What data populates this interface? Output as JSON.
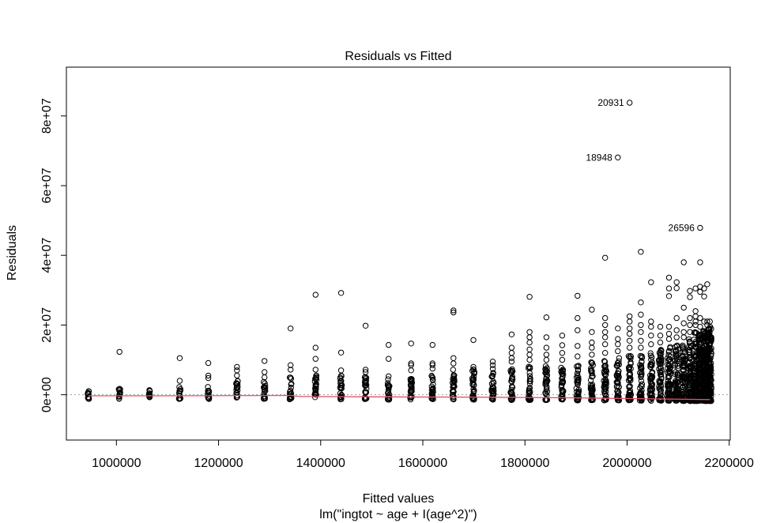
{
  "chart_data": {
    "type": "scatter",
    "title": "Residuals vs Fitted",
    "xlabel": "Fitted values",
    "subtitle": "lm(\"ingtot ~ age + I(age^2)\")",
    "ylabel": "Residuals",
    "xlim": [
      902000,
      2202000
    ],
    "ylim": [
      -13000000,
      94000000
    ],
    "x_ticks": [
      {
        "value": 1000000,
        "label": "1000000"
      },
      {
        "value": 1200000,
        "label": "1200000"
      },
      {
        "value": 1400000,
        "label": "1400000"
      },
      {
        "value": 1600000,
        "label": "1600000"
      },
      {
        "value": 1800000,
        "label": "1800000"
      },
      {
        "value": 2000000,
        "label": "2000000"
      },
      {
        "value": 2200000,
        "label": "2200000"
      }
    ],
    "y_ticks": [
      {
        "value": 0,
        "label": "0e+00"
      },
      {
        "value": 20000000,
        "label": "2e+07"
      },
      {
        "value": 40000000,
        "label": "4e+07"
      },
      {
        "value": 60000000,
        "label": "6e+07"
      },
      {
        "value": 80000000,
        "label": "8e+07"
      }
    ],
    "reference_line": {
      "y": 0,
      "color": "#999999",
      "style": "dotted"
    },
    "smooth_line": {
      "color": "#df536b",
      "points": [
        [
          945000,
          -300000
        ],
        [
          1100000,
          -300000
        ],
        [
          1340000,
          -200000
        ],
        [
          1360000,
          -500000
        ],
        [
          1500000,
          -600000
        ],
        [
          1700000,
          -700000
        ],
        [
          1900000,
          -900000
        ],
        [
          2050000,
          -1200000
        ],
        [
          2162000,
          -1400000
        ]
      ]
    },
    "clusters": [
      {
        "x": 945000,
        "low": -1200000,
        "high": 1300000,
        "density": 0.6
      },
      {
        "x": 1006000,
        "low": -1200000,
        "high": 2000000,
        "density": 0.6,
        "extra": [
          12300000
        ]
      },
      {
        "x": 1065000,
        "low": -1200000,
        "high": 1600000,
        "density": 0.6
      },
      {
        "x": 1124000,
        "low": -1200000,
        "high": 2200000,
        "density": 0.6,
        "extra": [
          4000000,
          10500000
        ]
      },
      {
        "x": 1180000,
        "low": -1200000,
        "high": 3000000,
        "density": 0.6,
        "extra": [
          4800000,
          5500000,
          9100000
        ]
      },
      {
        "x": 1236000,
        "low": -1200000,
        "high": 4000000,
        "density": 0.65,
        "extra": [
          5500000,
          7000000,
          8000000
        ]
      },
      {
        "x": 1290000,
        "low": -1200000,
        "high": 4000000,
        "density": 0.65,
        "extra": [
          5000000,
          6500000,
          9700000
        ]
      },
      {
        "x": 1341000,
        "low": -1300000,
        "high": 5000000,
        "density": 0.7,
        "extra": [
          7200000,
          8500000,
          19000000
        ]
      },
      {
        "x": 1390000,
        "low": -1300000,
        "high": 6000000,
        "density": 0.7,
        "extra": [
          7200000,
          10300000,
          13500000,
          28700000
        ]
      },
      {
        "x": 1440000,
        "low": -1300000,
        "high": 6000000,
        "density": 0.7,
        "extra": [
          7000000,
          12100000,
          29200000
        ]
      },
      {
        "x": 1488000,
        "low": -1300000,
        "high": 5500000,
        "density": 0.7,
        "extra": [
          6500000,
          7200000,
          19800000
        ]
      },
      {
        "x": 1533000,
        "low": -1400000,
        "high": 4500000,
        "density": 0.7,
        "extra": [
          5300000,
          10300000,
          14300000
        ]
      },
      {
        "x": 1577000,
        "low": -1400000,
        "high": 6000000,
        "density": 0.75,
        "extra": [
          7000000,
          8500000,
          9000000,
          14700000
        ]
      },
      {
        "x": 1619000,
        "low": -1400000,
        "high": 5500000,
        "density": 0.75,
        "extra": [
          7500000,
          8500000,
          9000000,
          14300000
        ]
      },
      {
        "x": 1660000,
        "low": -1400000,
        "high": 7500000,
        "density": 0.75,
        "extra": [
          9000000,
          10500000,
          23600000,
          24200000
        ]
      },
      {
        "x": 1699000,
        "low": -1400000,
        "high": 7500000,
        "density": 0.8,
        "extra": [
          8000000,
          15700000
        ]
      },
      {
        "x": 1737000,
        "low": -1500000,
        "high": 7500000,
        "density": 0.8,
        "extra": [
          8500000,
          9500000
        ]
      },
      {
        "x": 1774000,
        "low": -1500000,
        "high": 8000000,
        "density": 0.8,
        "extra": [
          9500000,
          10500000,
          12000000,
          13500000,
          17300000
        ]
      },
      {
        "x": 1809000,
        "low": -1500000,
        "high": 8500000,
        "density": 0.85,
        "extra": [
          10000000,
          11500000,
          13000000,
          15000000,
          16500000,
          18000000,
          28100000
        ]
      },
      {
        "x": 1842000,
        "low": -1500000,
        "high": 8500000,
        "density": 0.85,
        "extra": [
          10000000,
          11500000,
          13500000,
          16500000,
          22200000
        ]
      },
      {
        "x": 1873000,
        "low": -1500000,
        "high": 8500000,
        "density": 0.85,
        "extra": [
          10000000,
          12000000,
          14200000,
          17000000
        ]
      },
      {
        "x": 1903000,
        "low": -1600000,
        "high": 9000000,
        "density": 0.9,
        "extra": [
          11000000,
          14000000,
          18500000,
          22000000,
          28400000
        ]
      },
      {
        "x": 1931000,
        "low": -1600000,
        "high": 9500000,
        "density": 0.9,
        "extra": [
          11500000,
          13500000,
          15000000,
          18000000,
          24400000
        ]
      },
      {
        "x": 1957000,
        "low": -1600000,
        "high": 10000000,
        "density": 0.95,
        "extra": [
          12000000,
          14500000,
          16500000,
          18000000,
          20000000,
          22000000,
          39300000
        ]
      },
      {
        "x": 1982000,
        "low": -1600000,
        "high": 10500000,
        "density": 0.95,
        "extra": [
          12500000,
          14500000,
          16000000,
          19000000
        ]
      },
      {
        "x": 2005000,
        "low": -1600000,
        "high": 11500000,
        "density": 1.0,
        "extra": [
          13500000,
          15500000,
          17500000,
          19000000,
          21000000,
          22500000
        ]
      },
      {
        "x": 2027000,
        "low": -1700000,
        "high": 11500000,
        "density": 1.0,
        "extra": [
          13500000,
          15500000,
          18000000,
          20000000,
          23000000,
          26500000,
          41000000
        ]
      },
      {
        "x": 2047000,
        "low": -1700000,
        "high": 12500000,
        "density": 1.0,
        "extra": [
          14500000,
          17000000,
          19500000,
          21000000,
          32300000
        ]
      },
      {
        "x": 2065000,
        "low": -1700000,
        "high": 13000000,
        "density": 1.1,
        "extra": [
          15000000,
          17000000,
          19500000
        ]
      },
      {
        "x": 2082000,
        "low": -1700000,
        "high": 14000000,
        "density": 1.1,
        "extra": [
          16000000,
          17500000,
          19500000,
          28300000,
          30500000,
          33600000
        ]
      },
      {
        "x": 2097000,
        "low": -1700000,
        "high": 14500000,
        "density": 1.2,
        "extra": [
          16500000,
          18500000,
          22000000,
          30600000,
          32300000
        ]
      },
      {
        "x": 2111000,
        "low": -1800000,
        "high": 14500000,
        "density": 1.3,
        "extra": [
          16500000,
          18000000,
          20500000,
          25000000,
          38000000
        ]
      },
      {
        "x": 2123000,
        "low": -1800000,
        "high": 16000000,
        "density": 1.4,
        "extra": [
          18000000,
          20000000,
          22000000,
          28000000,
          29800000
        ]
      },
      {
        "x": 2134000,
        "low": -1800000,
        "high": 18000000,
        "density": 1.5,
        "extra": [
          20000000,
          21000000,
          22500000,
          24000000,
          30500000
        ]
      },
      {
        "x": 2143000,
        "low": -1800000,
        "high": 18000000,
        "density": 1.6,
        "extra": [
          19500000,
          22000000,
          29500000,
          31000000,
          38000000
        ]
      },
      {
        "x": 2151000,
        "low": -1800000,
        "high": 19000000,
        "density": 1.6,
        "extra": [
          21000000,
          28200000,
          30500000
        ]
      },
      {
        "x": 2157000,
        "low": -1800000,
        "high": 19000000,
        "density": 1.7,
        "extra": [
          20000000,
          21000000,
          31700000
        ]
      },
      {
        "x": 2162000,
        "low": -1800000,
        "high": 19500000,
        "density": 1.7,
        "extra": [
          21000000
        ]
      }
    ],
    "outliers": [
      {
        "x": 2005000,
        "y": 83800000,
        "label": "20931"
      },
      {
        "x": 1982000,
        "y": 68100000,
        "label": "18948"
      },
      {
        "x": 2143000,
        "y": 47900000,
        "label": "26596"
      }
    ]
  }
}
